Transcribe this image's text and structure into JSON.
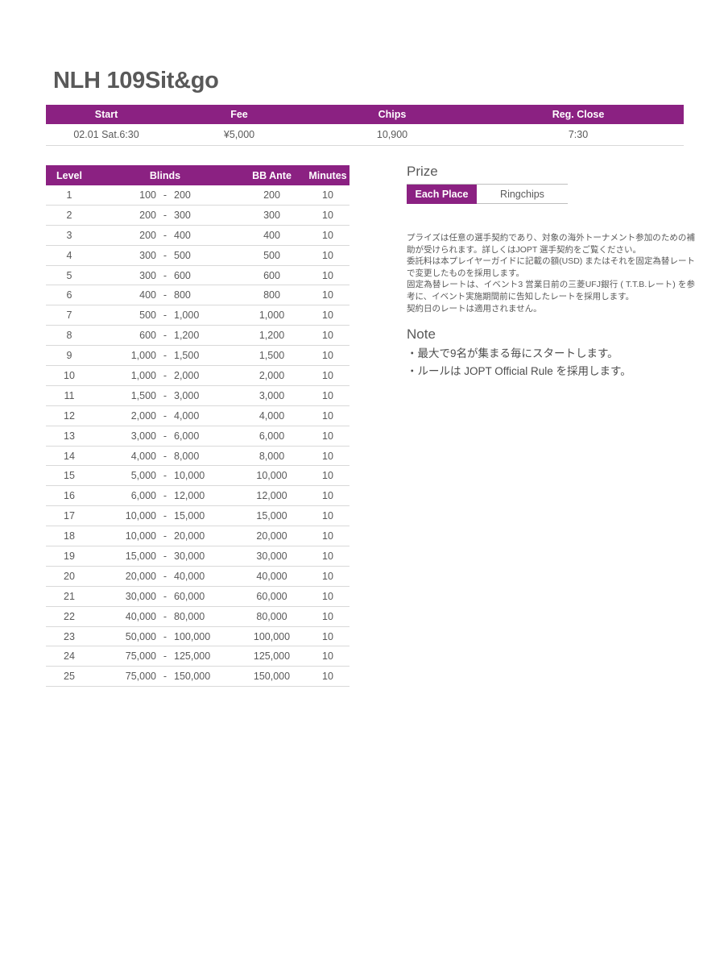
{
  "page": {
    "title": "NLH 109Sit&go"
  },
  "colors": {
    "accent": "#8B2182",
    "text": "#595959",
    "border": "#D9D9D9"
  },
  "info_table": {
    "headers": [
      "Start",
      "Fee",
      "Chips",
      "Reg. Close"
    ],
    "values": [
      "02.01 Sat.6:30",
      "¥5,000",
      "10,900",
      "7:30"
    ]
  },
  "blinds_table": {
    "headers": [
      "Level",
      "Blinds",
      "BB Ante",
      "Minutes"
    ],
    "dash": "-",
    "rows": [
      {
        "level": "1",
        "sb": "100",
        "bb": "200",
        "ante": "200",
        "minutes": "10"
      },
      {
        "level": "2",
        "sb": "200",
        "bb": "300",
        "ante": "300",
        "minutes": "10"
      },
      {
        "level": "3",
        "sb": "200",
        "bb": "400",
        "ante": "400",
        "minutes": "10"
      },
      {
        "level": "4",
        "sb": "300",
        "bb": "500",
        "ante": "500",
        "minutes": "10"
      },
      {
        "level": "5",
        "sb": "300",
        "bb": "600",
        "ante": "600",
        "minutes": "10"
      },
      {
        "level": "6",
        "sb": "400",
        "bb": "800",
        "ante": "800",
        "minutes": "10"
      },
      {
        "level": "7",
        "sb": "500",
        "bb": "1,000",
        "ante": "1,000",
        "minutes": "10"
      },
      {
        "level": "8",
        "sb": "600",
        "bb": "1,200",
        "ante": "1,200",
        "minutes": "10"
      },
      {
        "level": "9",
        "sb": "1,000",
        "bb": "1,500",
        "ante": "1,500",
        "minutes": "10"
      },
      {
        "level": "10",
        "sb": "1,000",
        "bb": "2,000",
        "ante": "2,000",
        "minutes": "10"
      },
      {
        "level": "11",
        "sb": "1,500",
        "bb": "3,000",
        "ante": "3,000",
        "minutes": "10"
      },
      {
        "level": "12",
        "sb": "2,000",
        "bb": "4,000",
        "ante": "4,000",
        "minutes": "10"
      },
      {
        "level": "13",
        "sb": "3,000",
        "bb": "6,000",
        "ante": "6,000",
        "minutes": "10"
      },
      {
        "level": "14",
        "sb": "4,000",
        "bb": "8,000",
        "ante": "8,000",
        "minutes": "10"
      },
      {
        "level": "15",
        "sb": "5,000",
        "bb": "10,000",
        "ante": "10,000",
        "minutes": "10"
      },
      {
        "level": "16",
        "sb": "6,000",
        "bb": "12,000",
        "ante": "12,000",
        "minutes": "10"
      },
      {
        "level": "17",
        "sb": "10,000",
        "bb": "15,000",
        "ante": "15,000",
        "minutes": "10"
      },
      {
        "level": "18",
        "sb": "10,000",
        "bb": "20,000",
        "ante": "20,000",
        "minutes": "10"
      },
      {
        "level": "19",
        "sb": "15,000",
        "bb": "30,000",
        "ante": "30,000",
        "minutes": "10"
      },
      {
        "level": "20",
        "sb": "20,000",
        "bb": "40,000",
        "ante": "40,000",
        "minutes": "10"
      },
      {
        "level": "21",
        "sb": "30,000",
        "bb": "60,000",
        "ante": "60,000",
        "minutes": "10"
      },
      {
        "level": "22",
        "sb": "40,000",
        "bb": "80,000",
        "ante": "80,000",
        "minutes": "10"
      },
      {
        "level": "23",
        "sb": "50,000",
        "bb": "100,000",
        "ante": "100,000",
        "minutes": "10"
      },
      {
        "level": "24",
        "sb": "75,000",
        "bb": "125,000",
        "ante": "125,000",
        "minutes": "10"
      },
      {
        "level": "25",
        "sb": "75,000",
        "bb": "150,000",
        "ante": "150,000",
        "minutes": "10"
      }
    ]
  },
  "prize": {
    "heading": "Prize",
    "tabs": [
      {
        "label": "Each Place",
        "selected": true
      },
      {
        "label": "Ringchips",
        "selected": false
      }
    ],
    "notes": [
      "プライズは任意の選手契約であり、対象の海外トーナメント参加のための補助が受けられます。詳しくはJOPT 選手契約をご覧ください。",
      "委託料は本プレイヤーガイドに記載の額(USD) またはそれを固定為替レートで変更したものを採用します。",
      "固定為替レートは、イベント3 営業日前の三菱UFJ銀行 ( T.T.B.レート) を参考に、イベント実施期間前に告知したレートを採用します。",
      "契約日のレートは適用されません。"
    ]
  },
  "note": {
    "heading": "Note",
    "items": [
      "・最大で9名が集まる毎にスタートします。",
      "・ルールは JOPT Official Rule を採用します。"
    ]
  }
}
